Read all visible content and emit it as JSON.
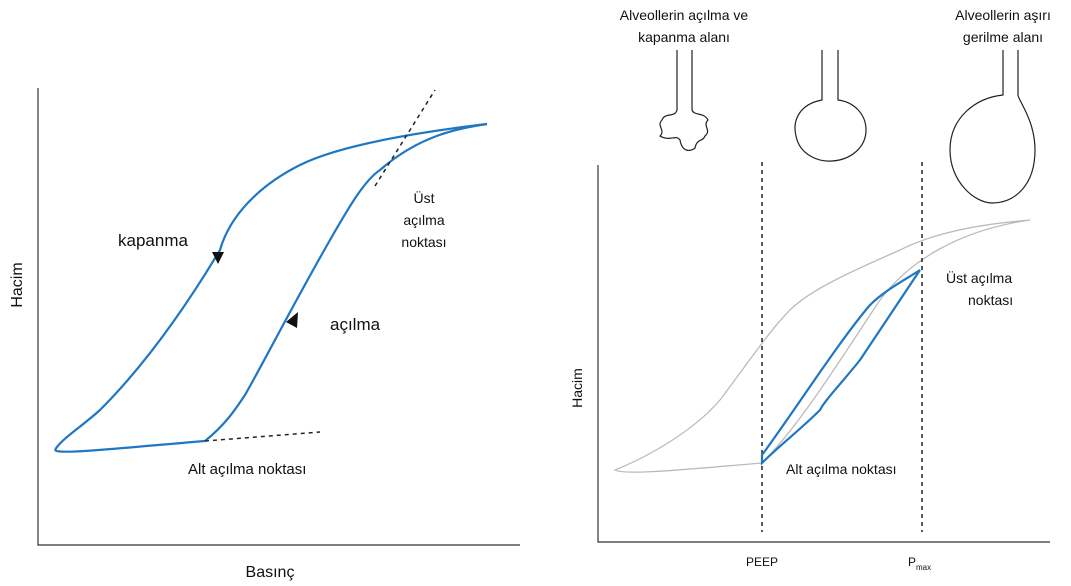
{
  "left_diagram": {
    "y_axis_label": "Hacim",
    "x_axis_label": "Basınç",
    "closing_label": "kapanma",
    "opening_label": "açılma",
    "upper_point_label": [
      "Üst",
      "açılma",
      "noktası"
    ],
    "lower_point_label": "Alt açılma noktası"
  },
  "right_diagram": {
    "alveoli_labels": [
      [
        "Alveollerin açılma ve",
        "kapanma alanı"
      ],
      [
        "Alveollerin aşırı",
        "gerilme alanı"
      ]
    ],
    "y_axis_label": "Hacim",
    "upper_point_label": [
      "Üst açılma",
      "noktası"
    ],
    "lower_point_label": "Alt açılma noktası",
    "x_markers": {
      "peep": "PEEP",
      "pmax": {
        "main": "P",
        "sub": "max"
      }
    }
  }
}
